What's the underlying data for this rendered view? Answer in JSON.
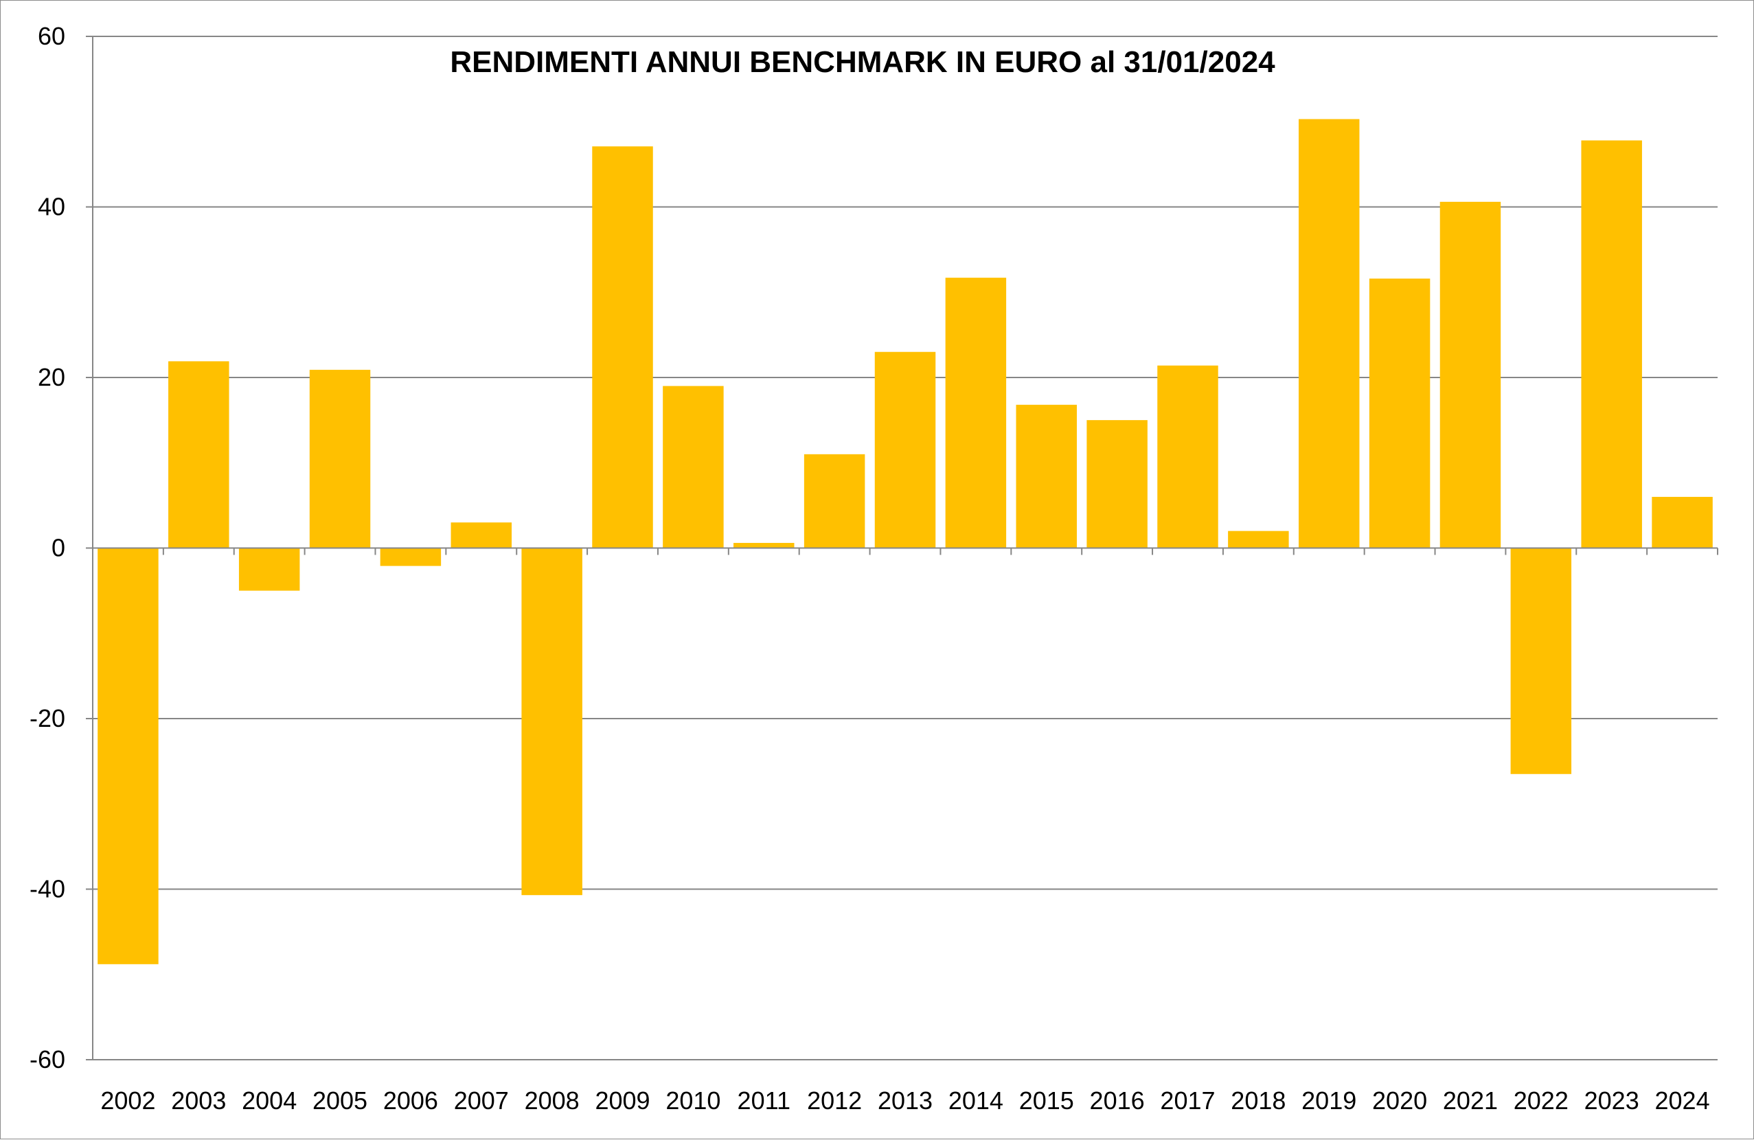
{
  "chart_data": {
    "type": "bar",
    "title": "RENDIMENTI ANNUI BENCHMARK IN EURO al 31/01/2024",
    "xlabel": "",
    "ylabel": "",
    "categories": [
      "2002",
      "2003",
      "2004",
      "2005",
      "2006",
      "2007",
      "2008",
      "2009",
      "2010",
      "2011",
      "2012",
      "2013",
      "2014",
      "2015",
      "2016",
      "2017",
      "2018",
      "2019",
      "2020",
      "2021",
      "2022",
      "2023",
      "2024"
    ],
    "values": [
      -48.8,
      21.9,
      -5.0,
      20.9,
      -2.1,
      3.0,
      -40.7,
      47.1,
      19.0,
      0.6,
      11.0,
      23.0,
      31.7,
      16.8,
      15.0,
      21.4,
      2.0,
      50.3,
      31.6,
      40.6,
      -26.5,
      47.8,
      6.0
    ],
    "ylim": [
      -60,
      60
    ],
    "yticks": [
      60,
      40,
      20,
      0,
      -20,
      -40,
      -60
    ],
    "ytick_labels": [
      "60",
      "40",
      "20",
      "0",
      "-20",
      "-40",
      "-60"
    ],
    "grid": true,
    "legend": "none",
    "colors": {
      "bar": "#FFC000",
      "gridline": "#868686",
      "axis": "#868686",
      "text": "#000000"
    }
  }
}
